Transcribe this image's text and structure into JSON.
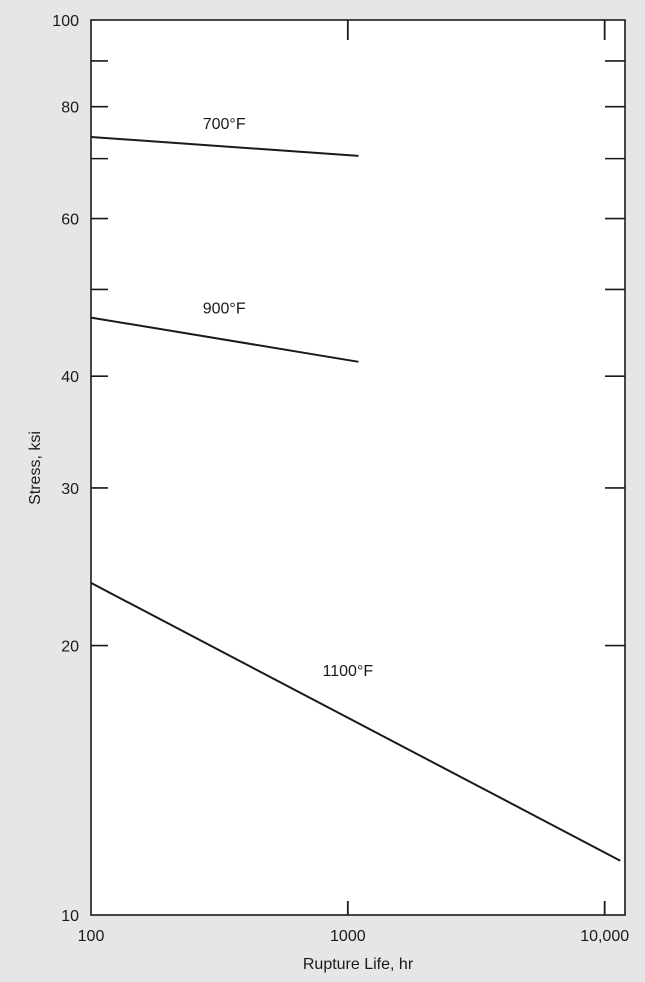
{
  "chart_data": {
    "type": "line",
    "title": "",
    "xlabel": "Rupture Life, hr",
    "ylabel": "Stress, ksi",
    "x_scale": "log",
    "y_scale": "log",
    "xlim": [
      100,
      12000
    ],
    "ylim": [
      10,
      100
    ],
    "x_ticks": [
      {
        "value": 100,
        "label": "100"
      },
      {
        "value": 1000,
        "label": "1000"
      },
      {
        "value": 10000,
        "label": "10,000"
      }
    ],
    "y_ticks": [
      {
        "value": 10,
        "label": "10"
      },
      {
        "value": 20,
        "label": "20"
      },
      {
        "value": 30,
        "label": "30"
      },
      {
        "value": 40,
        "label": "40"
      },
      {
        "value": 60,
        "label": "60"
      },
      {
        "value": 80,
        "label": "80"
      },
      {
        "value": 100,
        "label": "100"
      }
    ],
    "y_minor_ticks": [
      50,
      70,
      90
    ],
    "grid": false,
    "legend": "none",
    "series": [
      {
        "name": "700°F",
        "x": [
          100,
          1100
        ],
        "y": [
          74,
          70.5
        ],
        "label_at": [
          330,
          75.5
        ]
      },
      {
        "name": "900°F",
        "x": [
          100,
          1100
        ],
        "y": [
          46.5,
          41.5
        ],
        "label_at": [
          330,
          47
        ]
      },
      {
        "name": "1100°F",
        "x": [
          100,
          11500
        ],
        "y": [
          23.5,
          11.5
        ],
        "label_at": [
          1000,
          18.5
        ]
      }
    ],
    "colors": {
      "background": "#e5e6e8",
      "plot": "#ffffff",
      "line": "#1a1a1a"
    }
  }
}
